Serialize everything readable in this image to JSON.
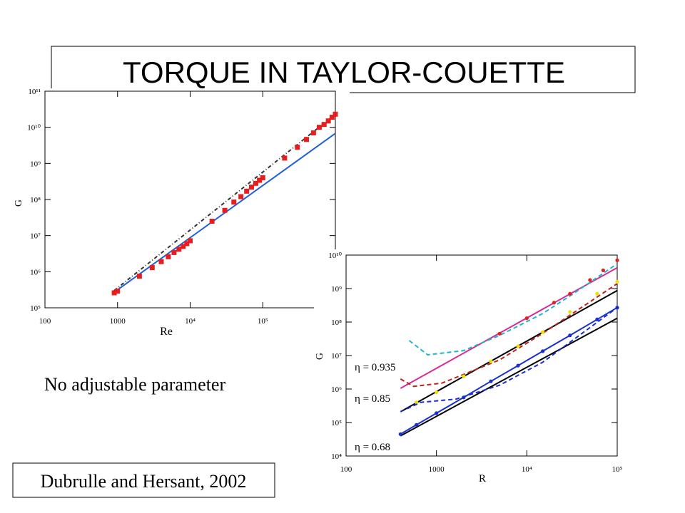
{
  "title": "TORQUE IN TAYLOR-COUETTE",
  "note": "No adjustable parameter",
  "citation": "Dubrulle and Hersant, 2002",
  "chart_data": [
    {
      "type": "scatter",
      "x_label": "Re",
      "y_label": "G",
      "log_x": true,
      "log_y": true,
      "xlim": [
        100,
        1000000
      ],
      "ylim": [
        100000,
        100000000000
      ],
      "xticks": [
        100,
        1000,
        {
          "value": 10000,
          "label": "10⁴"
        },
        {
          "value": 100000,
          "label": "10⁵"
        }
      ],
      "yticks": [
        {
          "value": 100000,
          "label": "10⁵"
        },
        {
          "value": 1000000,
          "label": "10⁶"
        },
        {
          "value": 10000000,
          "label": "10⁷"
        },
        {
          "value": 100000000,
          "label": "10⁸"
        },
        {
          "value": 1000000000,
          "label": "10⁹"
        },
        {
          "value": 10000000000,
          "label": "10¹⁰"
        },
        {
          "value": 100000000000,
          "label": "10¹¹"
        }
      ],
      "series": [
        {
          "color": "#1f5fd6",
          "line": "solid",
          "x": [
            900,
            1000000
          ],
          "values": [
            270000,
            6800000000
          ]
        },
        {
          "color": "#333333",
          "line": "dashdot",
          "x": [
            900,
            1000000
          ],
          "values": [
            300000,
            23000000000
          ]
        },
        {
          "color": "#e81e1e",
          "marker": "square",
          "x": [
            900,
            1000,
            2000,
            3000,
            4000,
            5000,
            6000,
            7000,
            8000,
            9000,
            10000,
            20000,
            30000,
            40000,
            50000,
            60000,
            70000,
            80000,
            90000,
            100000,
            200000,
            300000,
            400000,
            500000,
            600000,
            700000,
            800000,
            900000,
            1000000
          ],
          "values": [
            260000,
            290000,
            750000,
            1300000,
            1900000,
            2600000,
            3400000,
            4200000,
            5000000,
            6000000,
            7200000,
            25000000,
            50000000,
            85000000,
            120000000,
            170000000,
            220000000,
            280000000,
            340000000,
            400000000,
            1400000000,
            2800000000,
            4600000000,
            7000000000,
            10000000000,
            12000000000,
            15000000000,
            19000000000,
            23000000000
          ]
        }
      ]
    },
    {
      "type": "line",
      "x_label": "R",
      "y_label": "G",
      "log_x": true,
      "log_y": true,
      "xlim": [
        100,
        100000
      ],
      "ylim": [
        10000,
        10000000000
      ],
      "xticks": [
        100,
        1000,
        {
          "value": 10000,
          "label": "10⁴"
        },
        {
          "value": 100000,
          "label": "10⁵"
        }
      ],
      "yticks": [
        {
          "value": 10000,
          "label": "10⁴"
        },
        {
          "value": 100000,
          "label": "10⁵"
        },
        {
          "value": 1000000,
          "label": "10⁶"
        },
        {
          "value": 10000000,
          "label": "10⁷"
        },
        {
          "value": 100000000,
          "label": "10⁸"
        },
        {
          "value": 1000000000,
          "label": "10⁹"
        },
        {
          "value": 10000000000,
          "label": "10¹⁰"
        }
      ],
      "annotations": [
        "η = 0.935",
        "η = 0.85",
        "η = 0.68"
      ],
      "series": [
        {
          "color": "#d62b9a",
          "line": "solid",
          "x": [
            400,
            100000
          ],
          "values": [
            1050000,
            4200000000
          ]
        },
        {
          "color": "#1fb5c8",
          "line": "dashed",
          "x": [
            500,
            800,
            2000,
            5000,
            15000,
            30000,
            100000
          ],
          "values": [
            28000000,
            10500000,
            14000000,
            40000000,
            180000000,
            600000000,
            5500000000
          ]
        },
        {
          "color": "#e02020",
          "marker": "dot",
          "x": [
            5000,
            10000,
            20000,
            30000,
            50000,
            70000,
            100000
          ],
          "values": [
            45000000,
            130000000,
            380000000,
            700000000,
            1800000000,
            3500000000,
            7000000000
          ]
        },
        {
          "color": "#000000",
          "line": "solid",
          "x": [
            400,
            100000
          ],
          "values": [
            210000,
            870000000
          ]
        },
        {
          "color": "#c0201a",
          "line": "dashed",
          "x": [
            400,
            560,
            1150,
            5000,
            15000,
            100000
          ],
          "values": [
            2000000,
            1200000,
            1500000,
            7400000,
            46000000,
            1400000000
          ]
        },
        {
          "color": "#f0e000",
          "marker": "dot",
          "x": [
            600,
            1000,
            2000,
            4000,
            8000,
            15000,
            30000,
            60000,
            100000
          ],
          "values": [
            400000,
            800000,
            2400000,
            6700000,
            19000000,
            50000000,
            200000000,
            700000000,
            1600000000
          ]
        },
        {
          "color": "#000000",
          "line": "solid",
          "x": [
            400,
            100000
          ],
          "values": [
            40000,
            130000000
          ]
        },
        {
          "color": "#1a2fd0",
          "line": "dashed",
          "x": [
            400,
            670,
            1650,
            5000,
            15000,
            100000
          ],
          "values": [
            210000,
            400000,
            500000,
            1300000,
            6300000,
            270000000
          ]
        },
        {
          "color": "#1a2fd0",
          "line": "solid",
          "marker": "dot",
          "x": [
            400,
            600,
            1000,
            2000,
            4000,
            8000,
            15000,
            30000,
            60000,
            100000
          ],
          "values": [
            45000,
            85000,
            190000,
            560000,
            1700000,
            5000000,
            13500000,
            40000000,
            120000000,
            270000000
          ]
        }
      ]
    }
  ]
}
